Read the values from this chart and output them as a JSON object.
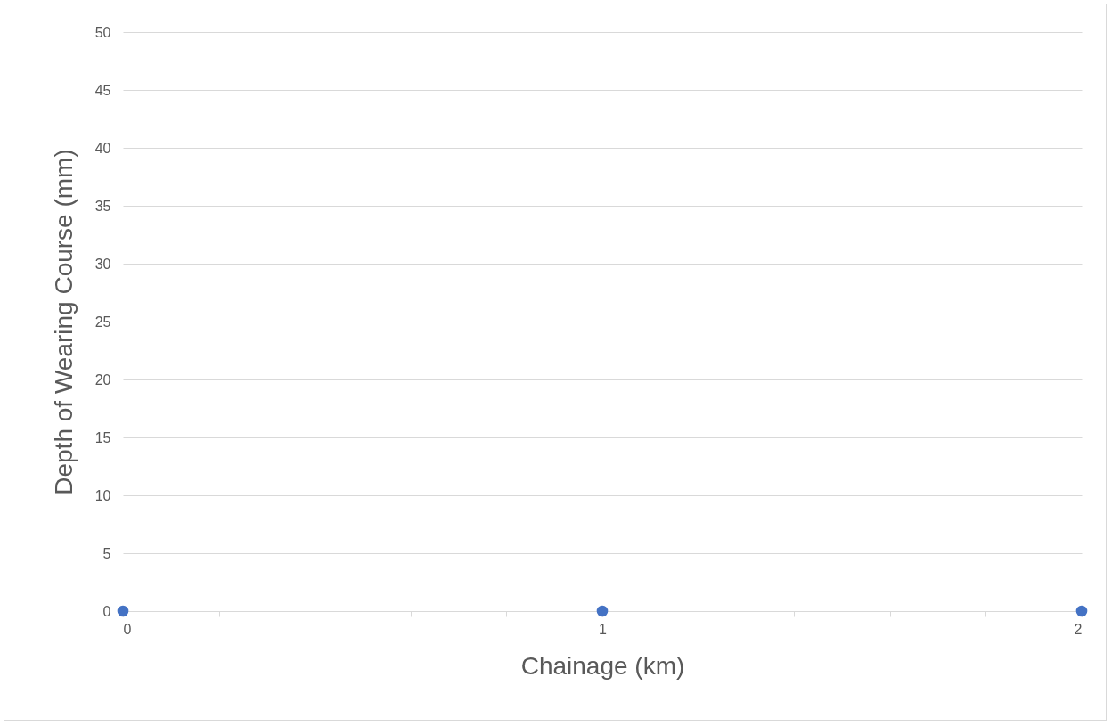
{
  "chart_data": {
    "type": "scatter",
    "xlabel": "Chainage (km)",
    "ylabel": "Depth of Wearing Course (mm)",
    "x": [
      0,
      1,
      2
    ],
    "values": [
      0,
      0,
      0
    ],
    "color": "#4472c4",
    "marker": "circle",
    "xlim": [
      0,
      2
    ],
    "xticks": [
      0,
      {
        "value": 0.2,
        "label": null
      },
      {
        "value": 0.4,
        "label": null
      },
      {
        "value": 0.6,
        "label": null
      },
      {
        "value": 0.8,
        "label": null
      },
      1,
      {
        "value": 1.2,
        "label": null
      },
      {
        "value": 1.4,
        "label": null
      },
      {
        "value": 1.6,
        "label": null
      },
      {
        "value": 1.8,
        "label": null
      },
      2
    ],
    "ylim": [
      0,
      50
    ],
    "yticks": [
      0,
      5,
      10,
      15,
      20,
      25,
      30,
      35,
      40,
      45,
      50
    ],
    "grid": "y"
  }
}
